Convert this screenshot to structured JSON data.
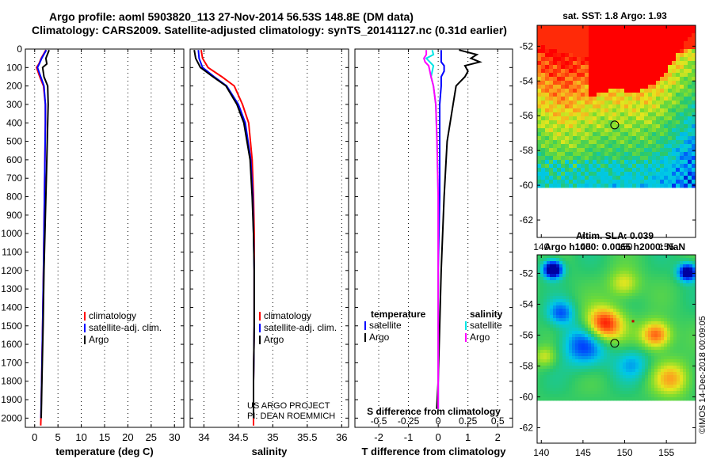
{
  "title": {
    "line1": "Argo profile: aoml 5903820_113 27-Nov-2014 56.53S 148.8E (DM data)",
    "line2": "Climatology: CARS2009. Satellite-adjusted climatology: synTS_20141127.nc (0.31d earlier)"
  },
  "credit": {
    "line1": "US ARGO PROJECT",
    "line2": "PI: DEAN ROEMMICH"
  },
  "watermark": "©IMOS 14-Dec-2018 00:09:05",
  "colors": {
    "climatology": "#ff0000",
    "satellite_adj": "#0000ff",
    "argo": "#000000",
    "t_satellite": "#0000ff",
    "s_satellite": "#00e5e5",
    "s_argo": "#ff00ff"
  },
  "chart_data": [
    {
      "type": "line",
      "name": "temperature-profile",
      "xlabel": "temperature (deg C)",
      "ylabel": "",
      "xlim": [
        -2,
        32
      ],
      "ylim": [
        2050,
        0
      ],
      "xticks": [
        0,
        5,
        10,
        15,
        20,
        25,
        30
      ],
      "yticks": [
        0,
        100,
        200,
        300,
        400,
        500,
        600,
        700,
        800,
        900,
        1000,
        1100,
        1200,
        1300,
        1400,
        1500,
        1600,
        1700,
        1800,
        1900,
        2000
      ],
      "depth": [
        5,
        50,
        80,
        100,
        150,
        200,
        300,
        400,
        600,
        800,
        1000,
        1200,
        1500,
        1800,
        2000,
        2040
      ],
      "series": [
        {
          "name": "climatology",
          "color": "#ff0000",
          "values": [
            2.4,
            1.4,
            0.9,
            0.4,
            1.1,
            1.9,
            2.3,
            2.3,
            2.2,
            2.1,
            2.0,
            1.9,
            1.7,
            1.5,
            1.35,
            1.3
          ]
        },
        {
          "name": "satellite-adj. clim.",
          "color": "#0000ff",
          "values": [
            2.5,
            1.5,
            1.0,
            0.6,
            1.3,
            2.0,
            2.3,
            2.3,
            2.2,
            2.1,
            2.0,
            1.9,
            1.7,
            1.5,
            1.35,
            null
          ]
        },
        {
          "name": "Argo",
          "color": "#000000",
          "values": [
            3.1,
            2.4,
            2.6,
            1.7,
            2.0,
            2.8,
            2.9,
            2.8,
            2.6,
            2.4,
            2.2,
            2.0,
            1.8,
            1.55,
            1.4,
            null
          ]
        }
      ],
      "legend": [
        "climatology",
        "satellite-adj. clim.",
        "Argo"
      ],
      "legend_position": "lower-right"
    },
    {
      "type": "line",
      "name": "salinity-profile",
      "xlabel": "salinity",
      "xlim": [
        33.8,
        36.1
      ],
      "ylim": [
        2050,
        0
      ],
      "xticks": [
        34,
        34.5,
        35,
        35.5,
        36
      ],
      "depth": [
        5,
        50,
        100,
        150,
        200,
        300,
        400,
        600,
        800,
        1000,
        1200,
        1500,
        1800,
        2000,
        2040
      ],
      "series": [
        {
          "name": "climatology",
          "color": "#ff0000",
          "values": [
            33.96,
            33.98,
            34.06,
            34.26,
            34.44,
            34.56,
            34.65,
            34.7,
            34.72,
            34.73,
            34.73,
            34.73,
            34.72,
            34.72,
            34.72
          ]
        },
        {
          "name": "satellite-adj. clim.",
          "color": "#0000ff",
          "values": [
            33.92,
            33.93,
            33.98,
            34.15,
            34.33,
            34.5,
            34.6,
            34.68,
            34.71,
            34.72,
            34.73,
            34.73,
            34.72,
            34.72,
            null
          ]
        },
        {
          "name": "Argo",
          "color": "#000000",
          "values": [
            33.86,
            33.88,
            33.95,
            34.13,
            34.32,
            34.48,
            34.58,
            34.67,
            34.7,
            34.72,
            34.73,
            34.73,
            34.72,
            34.72,
            null
          ]
        }
      ],
      "legend": [
        "climatology",
        "satellite-adj. clim.",
        "Argo"
      ],
      "legend_position": "lower-right"
    },
    {
      "type": "line",
      "name": "difference-profile",
      "xlabel": "T difference from climatology",
      "xlabel_top": "S difference from climatology",
      "xlim": [
        -2.8,
        2.5
      ],
      "ylim": [
        2050,
        0
      ],
      "t_ticks": [
        -2,
        -1,
        0,
        1,
        2
      ],
      "s_ticks": [
        -0.5,
        -0.25,
        0,
        0.25,
        0.5
      ],
      "s_tick_labels": [
        "-0.5",
        "-0.25",
        "0",
        "0.25",
        "0.5"
      ],
      "depth": [
        5,
        30,
        50,
        70,
        90,
        120,
        150,
        200,
        300,
        500,
        800,
        1200,
        1500,
        1800,
        1950
      ],
      "series": [
        {
          "name": "T satellite",
          "group": "temperature",
          "color": "#0000ff",
          "values": [
            0.1,
            0.1,
            0.1,
            0.1,
            0.2,
            0.2,
            0.1,
            0.1,
            0.05,
            0.05,
            0.05,
            0.0,
            0.0,
            0.0,
            0.0
          ]
        },
        {
          "name": "T Argo",
          "group": "temperature",
          "color": "#000000",
          "values": [
            0.7,
            1.3,
            1.1,
            1.4,
            0.9,
            1.0,
            0.9,
            0.6,
            0.5,
            0.3,
            0.2,
            0.1,
            0.05,
            0.0,
            -0.05
          ]
        },
        {
          "name": "S satellite",
          "group": "salinity",
          "color": "#00e5e5",
          "values": [
            -0.05,
            -0.04,
            -0.1,
            -0.07,
            -0.04,
            -0.05,
            -0.06,
            -0.04,
            -0.02,
            -0.01,
            0.0,
            0.0,
            0.0,
            0.0,
            0.0
          ]
        },
        {
          "name": "S Argo",
          "group": "salinity",
          "color": "#ff00ff",
          "values": [
            -0.1,
            -0.1,
            -0.12,
            -0.11,
            -0.08,
            -0.07,
            -0.06,
            -0.04,
            -0.02,
            -0.01,
            0.0,
            0.0,
            0.0,
            0.0,
            0.0
          ]
        }
      ],
      "legend_temperature": {
        "title": "temperature",
        "items": [
          "satellite",
          "Argo"
        ]
      },
      "legend_salinity": {
        "title": "salinity",
        "items": [
          "satellite",
          "Argo"
        ]
      }
    },
    {
      "type": "heatmap",
      "name": "sst-map",
      "title": "sat. SST: 1.8 Argo: 1.93",
      "xticks": [
        140,
        145,
        150,
        155
      ],
      "yticks": [
        -52,
        -54,
        -56,
        -58,
        -60,
        -62
      ],
      "xlim": [
        139.5,
        158.5
      ],
      "ylim": [
        -63,
        -50.8
      ],
      "data_ylim_bottom": -60.2,
      "argo_marker": {
        "lon": 148.8,
        "lat": -56.53
      }
    },
    {
      "type": "heatmap",
      "name": "sla-map",
      "title_line1": "Altim. SLA: 0.039",
      "title_line2": "Argo h1000: 0.0065 h2000: NaN",
      "xticks": [
        140,
        145,
        150,
        155
      ],
      "yticks": [
        -52,
        -54,
        -56,
        -58,
        -60,
        -62
      ],
      "xlim": [
        139.5,
        158.5
      ],
      "ylim": [
        -63,
        -50.8
      ],
      "data_ylim_bottom": -60.2,
      "argo_marker": {
        "lon": 148.8,
        "lat": -56.53
      },
      "red_marker": {
        "lon": 151.0,
        "lat": -55.1
      }
    }
  ]
}
